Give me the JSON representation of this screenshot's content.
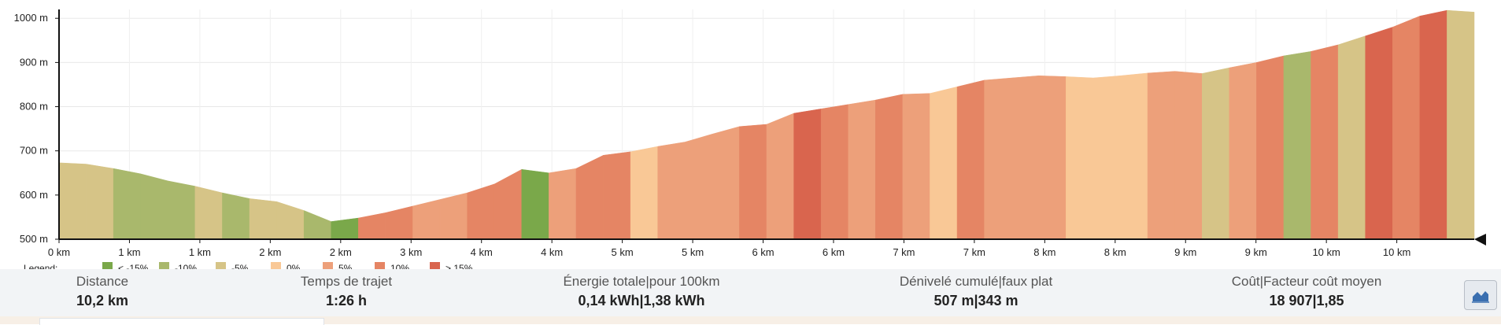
{
  "chart_data": {
    "type": "area",
    "title": "",
    "xlabel": "",
    "ylabel": "",
    "ylim": [
      500,
      1020
    ],
    "y_ticks": [
      "1000 m",
      "900 m",
      "800 m",
      "700 m",
      "600 m",
      "500 m"
    ],
    "x_ticks": [
      "0 km",
      "1 km",
      "1 km",
      "2 km",
      "2 km",
      "3 km",
      "4 km",
      "4 km",
      "5 km",
      "5 km",
      "6 km",
      "6 km",
      "7 km",
      "7 km",
      "8 km",
      "8 km",
      "9 km",
      "9 km",
      "10 km",
      "10 km"
    ],
    "legend_title": "Legend:",
    "legend": [
      {
        "label": "< -15%",
        "color": "#7aa84a"
      },
      {
        "label": "-10%",
        "color": "#a9b86c"
      },
      {
        "label": "-5%",
        "color": "#d6c487"
      },
      {
        "label": "0%",
        "color": "#f9c896"
      },
      {
        "label": "5%",
        "color": "#eda07a"
      },
      {
        "label": "10%",
        "color": "#e58564"
      },
      {
        "label": "> 15%",
        "color": "#d9654e"
      }
    ],
    "x": [
      0,
      0.2,
      0.4,
      0.6,
      0.8,
      1,
      1.2,
      1.4,
      1.6,
      1.8,
      2,
      2.2,
      2.4,
      2.6,
      2.8,
      3,
      3.2,
      3.4,
      3.6,
      3.8,
      4,
      4.2,
      4.4,
      4.6,
      4.8,
      5,
      5.2,
      5.4,
      5.6,
      5.8,
      6,
      6.2,
      6.4,
      6.6,
      6.8,
      7,
      7.2,
      7.4,
      7.6,
      7.8,
      8,
      8.2,
      8.4,
      8.6,
      8.8,
      9,
      9.2,
      9.4,
      9.6,
      9.8,
      10,
      10.2
    ],
    "elevation": [
      673,
      670,
      660,
      648,
      632,
      620,
      605,
      592,
      585,
      565,
      540,
      548,
      560,
      575,
      590,
      605,
      625,
      658,
      650,
      660,
      690,
      698,
      710,
      720,
      738,
      755,
      760,
      785,
      795,
      805,
      815,
      828,
      830,
      845,
      860,
      865,
      870,
      868,
      865,
      870,
      876,
      880,
      875,
      888,
      900,
      915,
      925,
      940,
      960,
      980,
      1005,
      1018
    ],
    "grades": [
      -5,
      -5,
      -10,
      -10,
      -10,
      -5,
      -10,
      -5,
      -5,
      -10,
      -15,
      10,
      10,
      5,
      5,
      10,
      10,
      -15,
      5,
      10,
      10,
      0,
      5,
      5,
      5,
      10,
      5,
      15,
      10,
      5,
      10,
      5,
      0,
      10,
      5,
      5,
      5,
      0,
      0,
      0,
      5,
      5,
      -5,
      5,
      10,
      -10,
      10,
      -5,
      15,
      10,
      15,
      -5
    ],
    "grade_levels": [
      -15,
      -10,
      -5,
      0,
      5,
      10,
      15
    ]
  }
}
